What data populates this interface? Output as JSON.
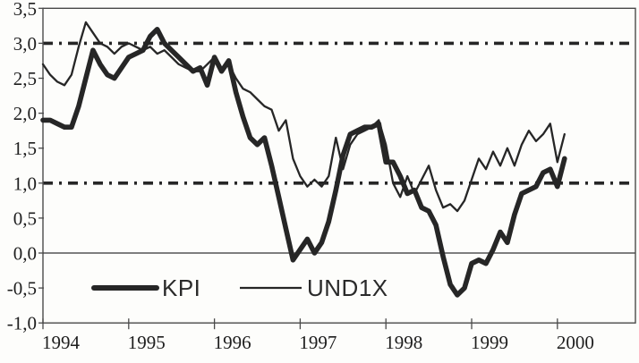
{
  "chart_data": {
    "type": "line",
    "title": "",
    "xlabel": "",
    "ylabel": "",
    "x_start": "1994-01",
    "frequency": "monthly",
    "x_unit": "year",
    "xlim_years": [
      1994.0,
      2000.91
    ],
    "ylim": [
      -1.0,
      3.5
    ],
    "grid": "off",
    "legend_position": "inside-bottom-left",
    "y_ticks": [
      3.5,
      3.0,
      2.5,
      2.0,
      1.5,
      1.0,
      0.5,
      0.0,
      -0.5,
      -1.0
    ],
    "y_tick_labels": [
      "3,5",
      "3,0",
      "2,5",
      "2,0",
      "1,5",
      "1,0",
      "0,5",
      "0,0",
      "-0,5",
      "-1,0"
    ],
    "x_tick_years": [
      1994,
      1995,
      1996,
      1997,
      1998,
      1999,
      2000
    ],
    "x_tick_labels": [
      "1994",
      "1995",
      "1996",
      "1997",
      "1998",
      "1999",
      "2000"
    ],
    "reference_lines": {
      "dash_dot_values": [
        3.0,
        1.0
      ],
      "solid_values": [
        0.0
      ]
    },
    "series": [
      {
        "name": "KPI",
        "line": "thick",
        "values": [
          1.9,
          1.9,
          1.85,
          1.8,
          1.8,
          2.1,
          2.5,
          2.9,
          2.7,
          2.55,
          2.5,
          2.65,
          2.8,
          2.85,
          2.9,
          3.1,
          3.2,
          3.0,
          2.9,
          2.8,
          2.7,
          2.6,
          2.65,
          2.4,
          2.8,
          2.6,
          2.75,
          2.3,
          1.95,
          1.65,
          1.55,
          1.65,
          1.25,
          0.8,
          0.35,
          -0.1,
          0.05,
          0.2,
          0.0,
          0.15,
          0.45,
          0.9,
          1.4,
          1.7,
          1.75,
          1.8,
          1.8,
          1.85,
          1.3,
          1.3,
          1.1,
          0.85,
          0.9,
          0.65,
          0.6,
          0.4,
          -0.05,
          -0.45,
          -0.6,
          -0.5,
          -0.15,
          -0.1,
          -0.15,
          0.05,
          0.3,
          0.15,
          0.55,
          0.85,
          0.9,
          0.95,
          1.15,
          1.2,
          0.95,
          1.35
        ]
      },
      {
        "name": "UND1X",
        "line": "thin",
        "values": [
          2.7,
          2.55,
          2.45,
          2.4,
          2.55,
          2.95,
          3.3,
          3.15,
          3.0,
          2.95,
          2.85,
          2.95,
          3.0,
          2.95,
          2.9,
          2.95,
          2.85,
          2.9,
          2.8,
          2.7,
          2.65,
          2.6,
          2.6,
          2.7,
          2.8,
          2.6,
          2.7,
          2.5,
          2.35,
          2.3,
          2.2,
          2.1,
          2.05,
          1.75,
          1.9,
          1.35,
          1.1,
          0.95,
          1.05,
          0.95,
          1.1,
          1.65,
          1.2,
          1.55,
          1.7,
          1.75,
          1.8,
          1.9,
          1.55,
          1.0,
          0.8,
          1.1,
          0.85,
          1.05,
          1.25,
          0.9,
          0.65,
          0.7,
          0.6,
          0.75,
          1.05,
          1.35,
          1.2,
          1.45,
          1.25,
          1.5,
          1.25,
          1.55,
          1.75,
          1.6,
          1.7,
          1.85,
          1.3,
          1.7
        ]
      }
    ]
  },
  "legend": {
    "items": [
      {
        "label": "KPI"
      },
      {
        "label": "UND1X"
      }
    ]
  },
  "colors": {
    "background": "#fdfdfb",
    "line_ink": "#262626",
    "axis": "#4a4a4a",
    "zero_line": "#555555",
    "label": "#1e1e1e"
  }
}
